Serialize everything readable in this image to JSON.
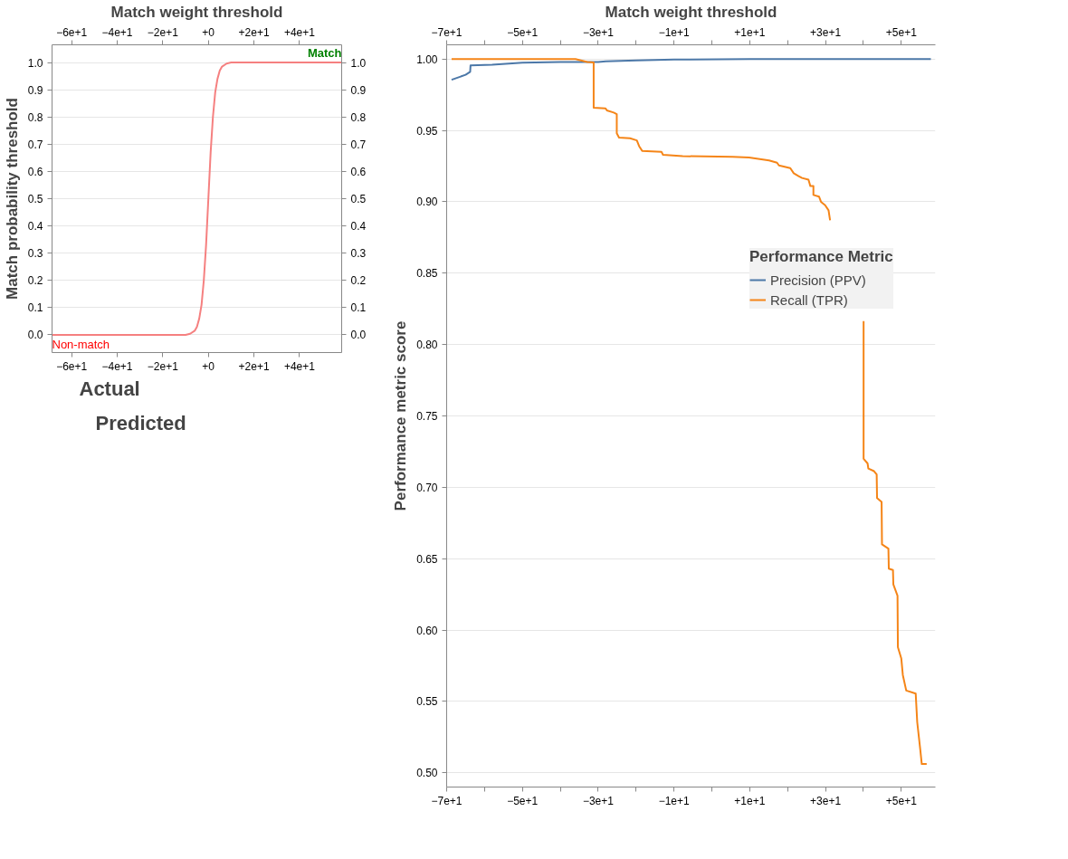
{
  "chart_data": [
    {
      "type": "line",
      "x2label": "Match weight threshold",
      "ylabel": "Match probability threshold",
      "xlim": [
        -68.6,
        58.5
      ],
      "x2lim": [
        -68.6,
        58.5
      ],
      "ylim": [
        -0.065,
        1.065
      ],
      "y2lim": [
        -0.065,
        1.065
      ],
      "xticks": [
        {
          "value": -60,
          "label": "−6e+1"
        },
        {
          "value": -40,
          "label": "−4e+1"
        },
        {
          "value": -20,
          "label": "−2e+1"
        },
        {
          "value": 0,
          "label": "+0"
        },
        {
          "value": 20,
          "label": "+2e+1"
        },
        {
          "value": 40,
          "label": "+4e+1"
        }
      ],
      "x2ticks": [
        {
          "value": -60,
          "label": "−6e+1"
        },
        {
          "value": -40,
          "label": "−4e+1"
        },
        {
          "value": -20,
          "label": "−2e+1"
        },
        {
          "value": 0,
          "label": "+0"
        },
        {
          "value": 20,
          "label": "+2e+1"
        },
        {
          "value": 40,
          "label": "+4e+1"
        }
      ],
      "yticks": [
        {
          "value": 0,
          "label": "0.0"
        },
        0.1,
        0.2,
        0.3,
        0.4,
        0.5,
        0.6,
        0.7,
        0.8,
        0.9,
        {
          "value": 1,
          "label": "1.0"
        }
      ],
      "y2ticks": [
        {
          "value": 0,
          "label": "0.0"
        },
        0.1,
        0.2,
        0.3,
        0.4,
        0.5,
        0.6,
        0.7,
        0.8,
        0.9,
        {
          "value": 1,
          "label": "1.0"
        }
      ],
      "grid": "y",
      "legend": false,
      "series": [
        {
          "color": "#f58080",
          "x": [
            -68.6,
            -20,
            -10,
            -8,
            -6,
            -5,
            -4,
            -3,
            -2,
            -1,
            0,
            1,
            2,
            3,
            4,
            5,
            6,
            8,
            10,
            20,
            58.5
          ],
          "values": [
            0,
            0,
            0,
            0.004,
            0.015,
            0.03,
            0.06,
            0.11,
            0.2,
            0.33,
            0.5,
            0.67,
            0.8,
            0.89,
            0.94,
            0.97,
            0.985,
            0.996,
            1,
            1,
            1
          ]
        }
      ],
      "annotations": [
        {
          "text": "Match",
          "x": 58.5,
          "y": 1.0
        },
        {
          "text": "Non-match",
          "x": -68.6,
          "y": 0
        }
      ]
    },
    {
      "type": "other",
      "annotations": [
        "Actual",
        "Predicted"
      ]
    },
    {
      "type": "line",
      "x2label": "Match weight threshold",
      "ylabel": "Performance metric score",
      "legend_title": "Performance Metric",
      "xlim": [
        -70,
        59
      ],
      "x2lim": [
        -70,
        59
      ],
      "ylim": [
        0.49,
        1.01
      ],
      "xticks": [
        {
          "value": -70,
          "label": "−7e+1"
        },
        {
          "value": -60,
          "label": null
        },
        {
          "value": -50,
          "label": "−5e+1"
        },
        {
          "value": -40,
          "label": null
        },
        {
          "value": -30,
          "label": "−3e+1"
        },
        {
          "value": -20,
          "label": null
        },
        {
          "value": -10,
          "label": "−1e+1"
        },
        {
          "value": 0,
          "label": null
        },
        {
          "value": 10,
          "label": "+1e+1"
        },
        {
          "value": 20,
          "label": null
        },
        {
          "value": 30,
          "label": "+3e+1"
        },
        {
          "value": 40,
          "label": null
        },
        {
          "value": 50,
          "label": "+5e+1"
        }
      ],
      "x2ticks": [
        {
          "value": -70,
          "label": "−7e+1"
        },
        {
          "value": -60,
          "label": null
        },
        {
          "value": -50,
          "label": "−5e+1"
        },
        {
          "value": -40,
          "label": null
        },
        {
          "value": -30,
          "label": "−3e+1"
        },
        {
          "value": -20,
          "label": null
        },
        {
          "value": -10,
          "label": "−1e+1"
        },
        {
          "value": 0,
          "label": null
        },
        {
          "value": 10,
          "label": "+1e+1"
        },
        {
          "value": 20,
          "label": null
        },
        {
          "value": 30,
          "label": "+3e+1"
        },
        {
          "value": 40,
          "label": null
        },
        {
          "value": 50,
          "label": "+5e+1"
        }
      ],
      "yticks": [
        {
          "value": 0.5,
          "label": "0.50"
        },
        0.55,
        {
          "value": 0.6,
          "label": "0.60"
        },
        0.65,
        {
          "value": 0.7,
          "label": "0.70"
        },
        0.75,
        {
          "value": 0.8,
          "label": "0.80"
        },
        0.85,
        {
          "value": 0.9,
          "label": "0.90"
        },
        0.95,
        {
          "value": 1.0,
          "label": "1.00"
        }
      ],
      "grid": "y",
      "legend": "right",
      "series": [
        {
          "name": "Precision (PPV)",
          "color": "#4c78a8",
          "x": [
            -68.7,
            -65,
            -63.8,
            -63.7,
            -58,
            -50,
            -40,
            -30,
            -28,
            -20,
            -10,
            10,
            57.8
          ],
          "values": [
            0.9855,
            0.989,
            0.991,
            0.9955,
            0.996,
            0.9975,
            0.998,
            0.998,
            0.9985,
            0.999,
            0.9997,
            1.0,
            1.0
          ]
        },
        {
          "name": "Recall (TPR)",
          "color": "#f58518",
          "x": [
            -68.7,
            -36.0,
            -32.9,
            -31.2,
            -31.2,
            -28.1,
            -27.7,
            -25.9,
            -25.1,
            -25.1,
            -24.5,
            -21.6,
            -19.8,
            -19.2,
            -18.4,
            -13.3,
            -12.9,
            -7.7,
            5.5,
            9.8,
            15.1,
            17.2,
            17.7,
            20.7,
            21.6,
            22.9,
            23.8,
            25.5,
            26.0,
            26.8,
            26.8,
            28.3,
            28.8,
            29.9,
            30.8,
            31.2,
            35.0,
            40.05,
            40.05,
            41.1,
            41.3,
            42.8,
            43.5,
            43.6,
            44.8,
            44.9,
            46.6,
            46.7,
            47.8,
            47.9,
            49.0,
            49.1,
            50.0,
            50.4,
            51.3,
            53.8,
            54.2,
            55.0,
            55.4,
            56.7
          ],
          "values": [
            1.0,
            1.0,
            0.998,
            0.9976,
            0.966,
            0.9655,
            0.964,
            0.9625,
            0.9614,
            0.948,
            0.945,
            0.9445,
            0.943,
            0.939,
            0.9357,
            0.935,
            0.933,
            0.932,
            0.9315,
            0.931,
            0.929,
            0.9274,
            0.9255,
            0.9236,
            0.92,
            0.918,
            0.9167,
            0.9155,
            0.911,
            0.911,
            0.9048,
            0.9036,
            0.9,
            0.8976,
            0.894,
            0.887,
            null,
            0.8164,
            0.72,
            0.7167,
            0.7132,
            0.7113,
            0.709,
            0.6924,
            0.6897,
            0.66,
            0.657,
            0.643,
            0.642,
            0.632,
            0.624,
            0.588,
            0.58,
            0.5685,
            0.5576,
            0.5555,
            0.5355,
            0.5164,
            0.5061,
            0.5061
          ]
        }
      ]
    }
  ]
}
